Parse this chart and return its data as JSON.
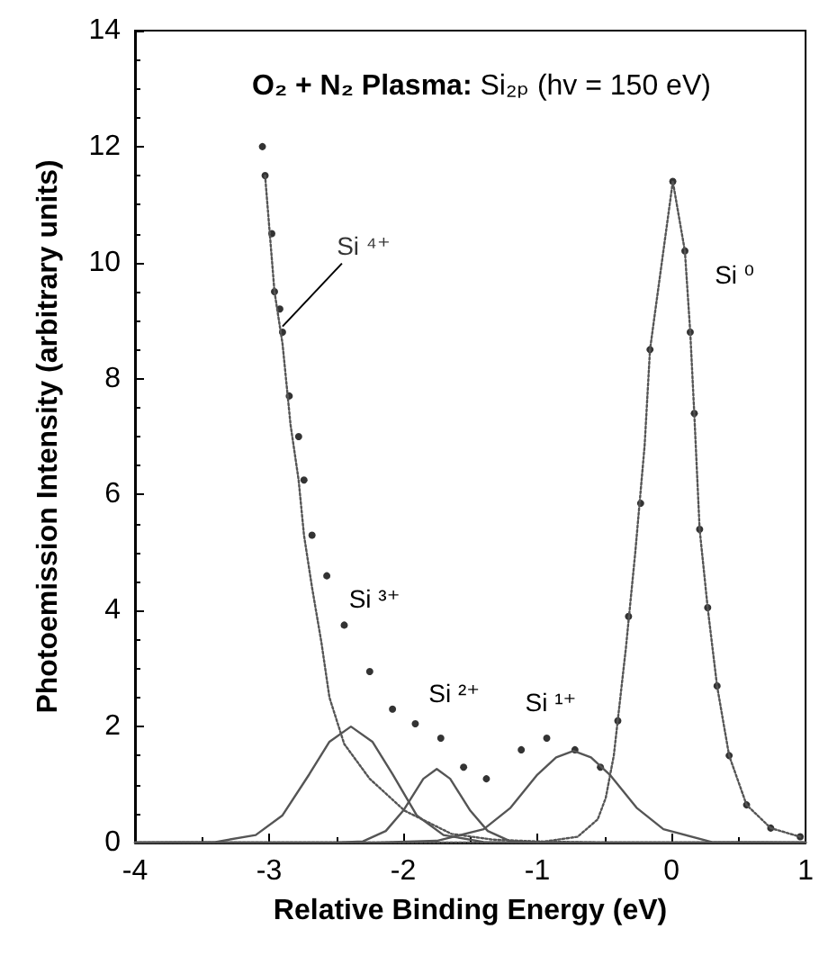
{
  "chart_data": {
    "type": "scatter",
    "title": "O₂ + N₂ Plasma: Si₂ₚ (hv = 150 eV)",
    "xlabel": "Relative Binding Energy (eV)",
    "ylabel": "Photoemission Intensity (arbitrary units)",
    "xlim": [
      -4,
      1
    ],
    "xticks": [
      -4,
      -3,
      -2,
      -1,
      0,
      1
    ],
    "ylim": [
      0,
      14
    ],
    "yticks": [
      0,
      2,
      4,
      6,
      8,
      10,
      12,
      14
    ],
    "series": [
      {
        "marker": "circle",
        "color": "#000000",
        "x": [
          -3.05,
          -3.03,
          -2.98,
          -2.96,
          -2.92,
          -2.9,
          -2.85,
          -2.78,
          -2.74,
          -2.68,
          -2.57,
          -2.44,
          -2.25,
          -2.08,
          -1.91,
          -1.72,
          -1.55,
          -1.38,
          -1.12,
          -0.93,
          -0.72,
          -0.53,
          -0.4,
          -0.32,
          -0.23,
          -0.16,
          0.01,
          0.1,
          0.14,
          0.17,
          0.21,
          0.27,
          0.34,
          0.43,
          0.56,
          0.74,
          0.96
        ],
        "values": [
          12.0,
          11.5,
          10.5,
          9.5,
          9.2,
          8.8,
          7.7,
          7.0,
          6.25,
          5.3,
          4.6,
          3.75,
          2.95,
          2.3,
          2.05,
          1.8,
          1.3,
          1.1,
          1.6,
          1.8,
          1.6,
          1.3,
          2.1,
          3.9,
          5.85,
          8.5,
          11.4,
          10.2,
          8.8,
          7.4,
          5.4,
          4.05,
          2.7,
          1.5,
          0.65,
          0.25,
          0.1
        ]
      },
      {
        "type": "line",
        "line_style": "dotted",
        "color": "#555555",
        "x": [
          -3.03,
          -2.96,
          -2.9,
          -2.84,
          -2.78,
          -2.74,
          -2.68,
          -2.61,
          -2.55,
          -2.44,
          -2.25,
          -1.99,
          -1.64,
          -1.33,
          -1.0,
          -0.5,
          0.0,
          1.0
        ],
        "values": [
          11.5,
          9.5,
          8.6,
          7.2,
          6.25,
          5.3,
          4.4,
          3.45,
          2.5,
          1.7,
          1.1,
          0.55,
          0.15,
          0.05,
          0.02,
          0.0,
          0.0,
          0.0
        ]
      },
      {
        "type": "line",
        "line_style": "solid",
        "color": "#555555",
        "x": [
          -4.0,
          -3.4,
          -3.1,
          -2.9,
          -2.7,
          -2.55,
          -2.39,
          -2.23,
          -2.08,
          -1.9,
          -1.7,
          -1.4,
          -1.0,
          0.0,
          1.0
        ],
        "values": [
          0.0,
          0.01,
          0.13,
          0.47,
          1.18,
          1.74,
          2.0,
          1.74,
          1.18,
          0.47,
          0.13,
          0.01,
          0.0,
          0.0,
          0.0
        ]
      },
      {
        "type": "line",
        "line_style": "solid",
        "color": "#555555",
        "x": [
          -4.0,
          -2.5,
          -2.3,
          -2.13,
          -2.0,
          -1.85,
          -1.75,
          -1.65,
          -1.5,
          -1.37,
          -1.2,
          -1.0,
          0.0,
          1.0
        ],
        "values": [
          0.0,
          0.0,
          0.02,
          0.2,
          0.55,
          1.1,
          1.27,
          1.1,
          0.55,
          0.2,
          0.02,
          0.0,
          0.0,
          0.0
        ]
      },
      {
        "type": "line",
        "line_style": "solid",
        "color": "#555555",
        "x": [
          -4.0,
          -2.2,
          -1.75,
          -1.4,
          -1.2,
          -1.0,
          -0.86,
          -0.73,
          -0.6,
          -0.46,
          -0.26,
          -0.06,
          0.3,
          1.0
        ],
        "values": [
          0.0,
          0.0,
          0.03,
          0.23,
          0.6,
          1.17,
          1.47,
          1.58,
          1.47,
          1.17,
          0.6,
          0.23,
          0.01,
          0.0
        ]
      },
      {
        "type": "line",
        "line_style": "dotted",
        "color": "#555555",
        "x": [
          -4.0,
          -1.0,
          -0.7,
          -0.55,
          -0.49,
          -0.43,
          -0.34,
          -0.27,
          -0.2,
          -0.16,
          0.01,
          0.1,
          0.14,
          0.17,
          0.21,
          0.27,
          0.34,
          0.43,
          0.56,
          0.74,
          0.96
        ],
        "values": [
          0.0,
          0.0,
          0.1,
          0.4,
          0.77,
          1.5,
          3.35,
          5.0,
          6.85,
          8.5,
          11.4,
          10.2,
          8.8,
          7.4,
          5.4,
          4.05,
          2.7,
          1.5,
          0.65,
          0.25,
          0.1
        ]
      }
    ],
    "annotations": [
      {
        "text": "Si ⁴⁺",
        "x": -2.9,
        "y": 8.9
      },
      "Si ³⁺",
      "Si ²⁺",
      "Si ¹⁺",
      "Si ⁰"
    ]
  }
}
